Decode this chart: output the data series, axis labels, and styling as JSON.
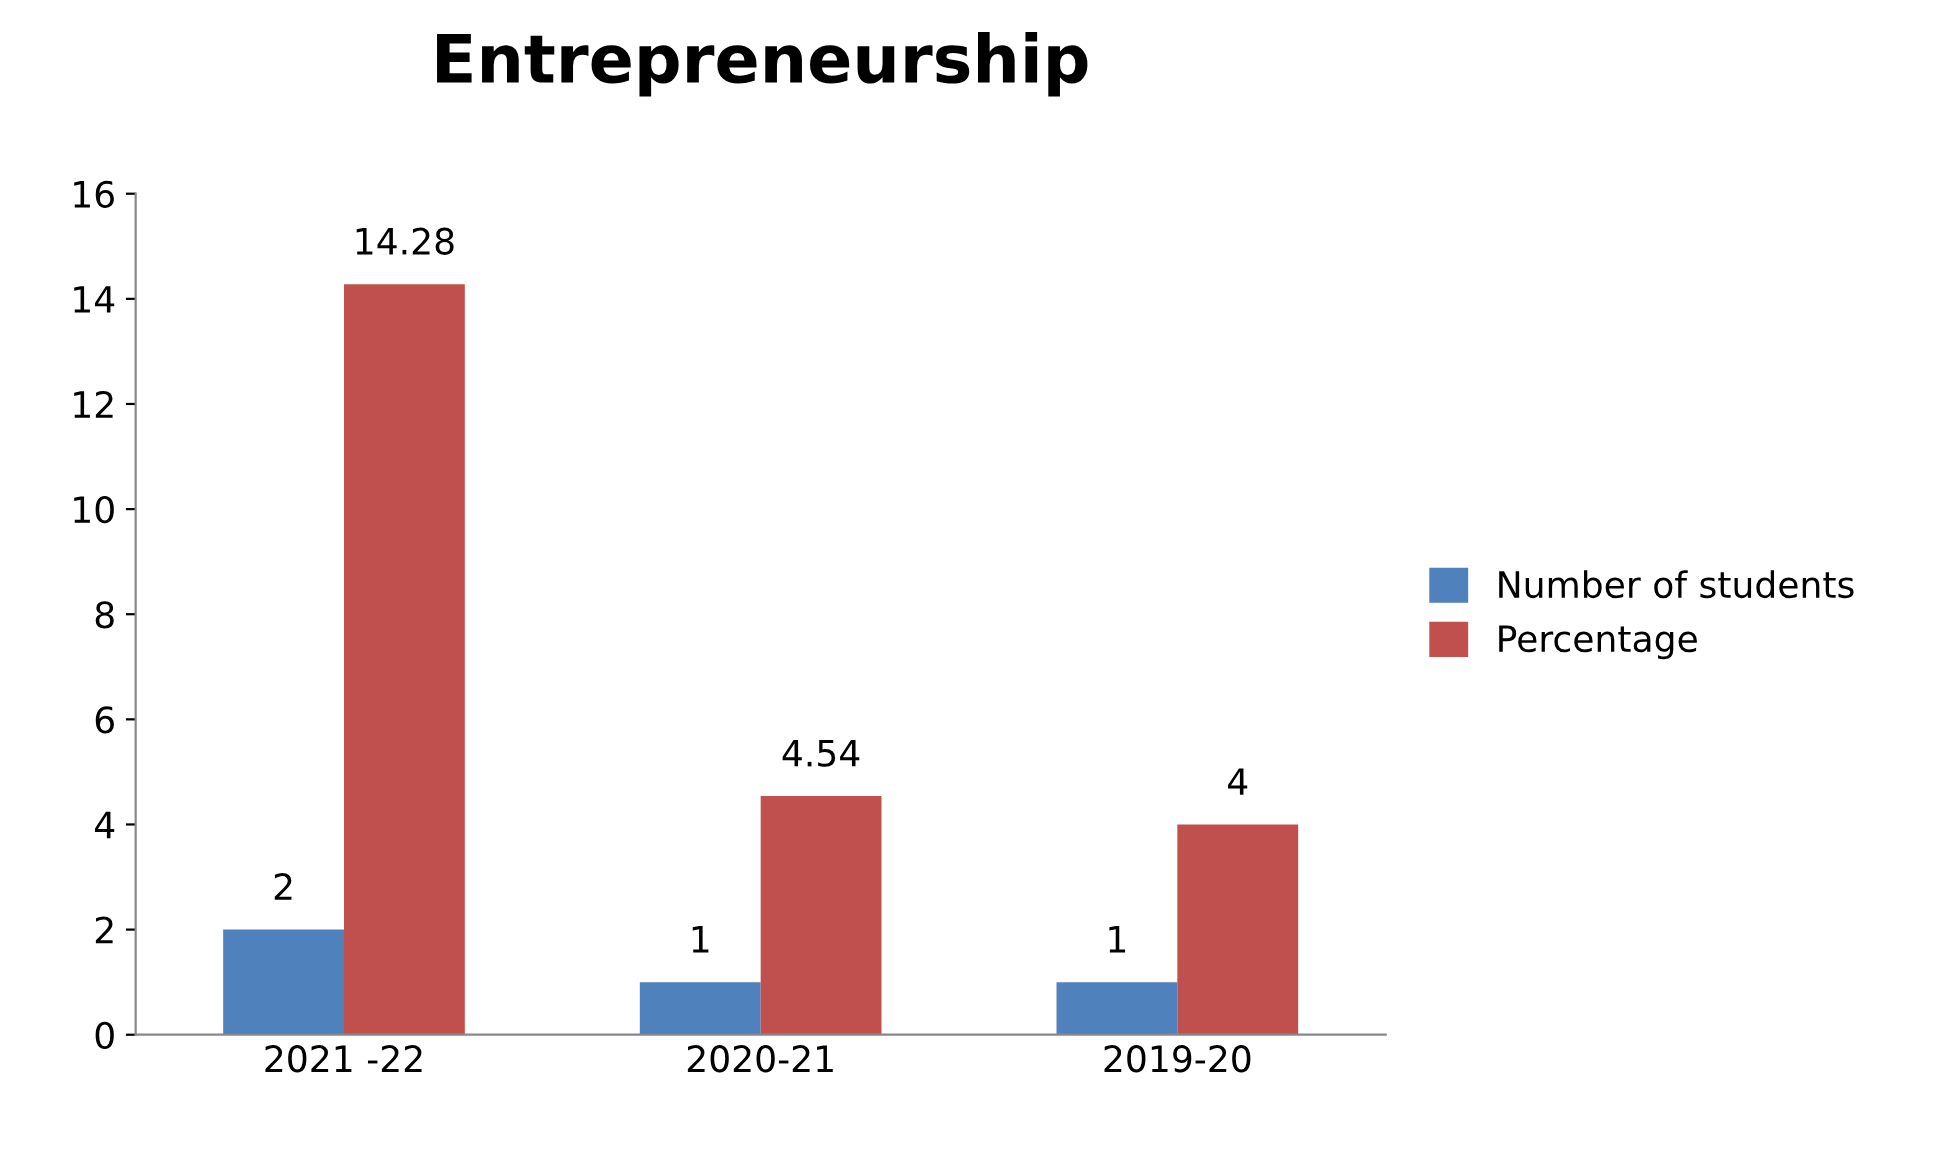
{
  "chart_data": {
    "type": "bar",
    "title": "Entrepreneurship",
    "categories": [
      "2021 -22",
      "2020-21",
      "2019-20"
    ],
    "series": [
      {
        "name": "Number of students",
        "color": "#4f81bd",
        "values": [
          2,
          1,
          1
        ]
      },
      {
        "name": "Percentage",
        "color": "#c0504d",
        "values": [
          14.28,
          4.54,
          4
        ]
      }
    ],
    "ylim": [
      0,
      16
    ],
    "yticks": [
      0,
      2,
      4,
      6,
      8,
      10,
      12,
      14,
      16
    ],
    "grid": false,
    "legend": "right",
    "data_labels": true
  }
}
